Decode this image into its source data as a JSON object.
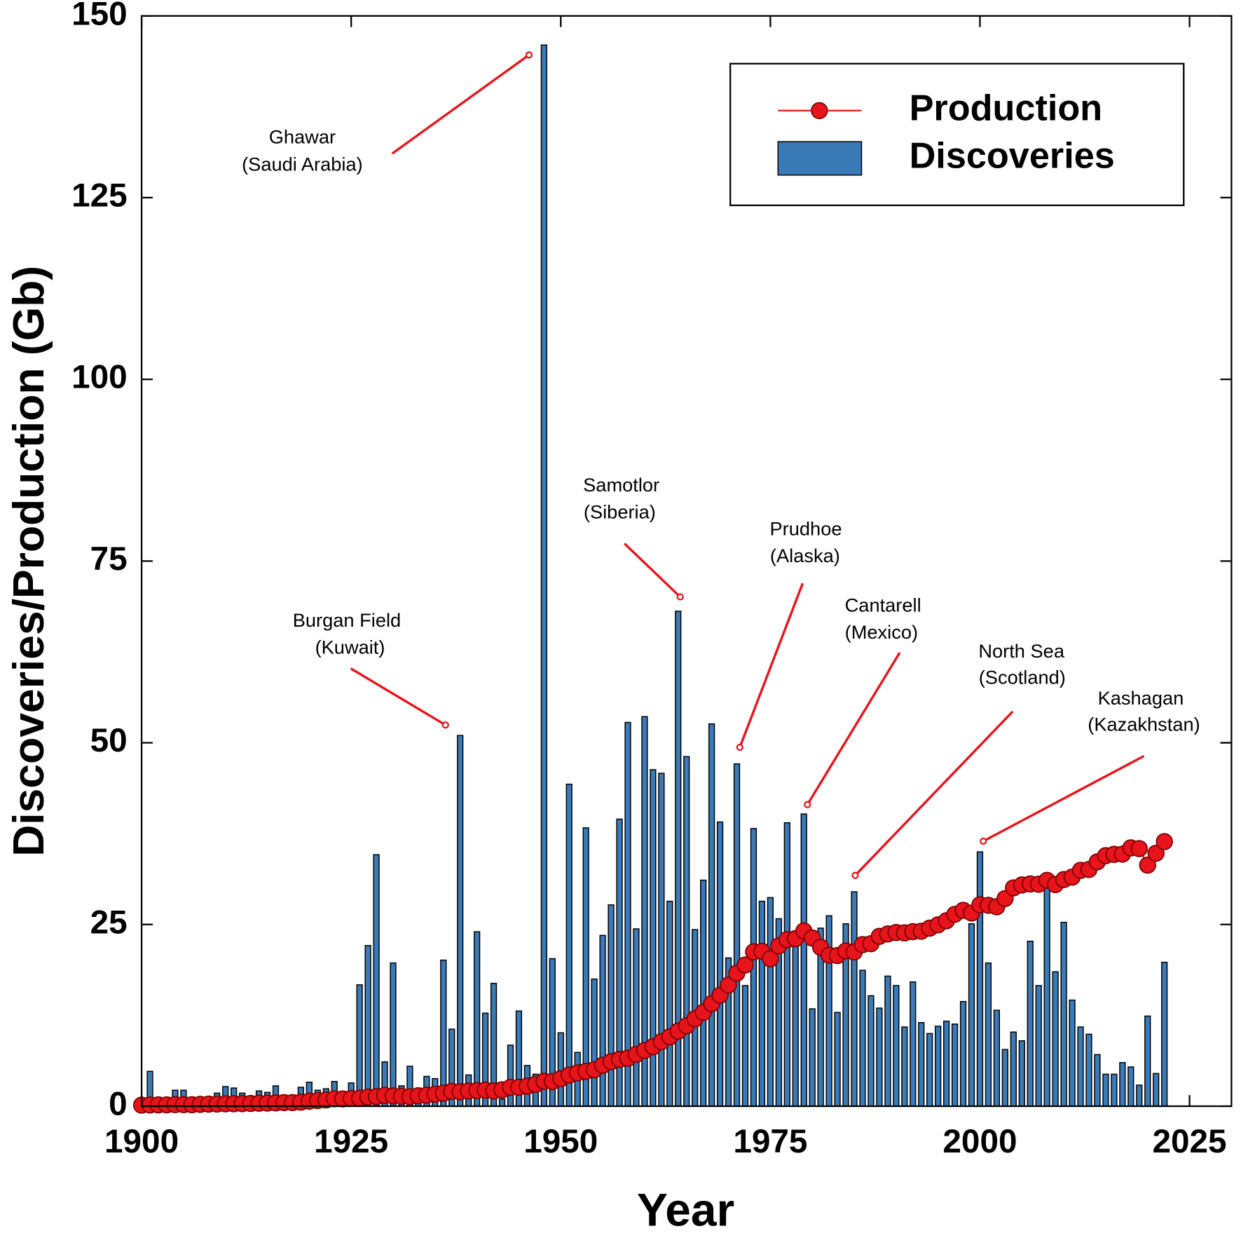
{
  "chart_data": {
    "type": "bar",
    "xlabel": "Year",
    "ylabel": "Discoveries/Production (Gb)",
    "xlim": [
      1900,
      2030
    ],
    "xticks": [
      1900,
      1925,
      1950,
      1975,
      2000,
      2025
    ],
    "ylim": [
      0,
      150
    ],
    "yticks": [
      0,
      25,
      50,
      75,
      100,
      125,
      150
    ],
    "legend": "upper right",
    "x": [
      1900,
      1901,
      1902,
      1903,
      1904,
      1905,
      1906,
      1907,
      1908,
      1909,
      1910,
      1911,
      1912,
      1913,
      1914,
      1915,
      1916,
      1917,
      1918,
      1919,
      1920,
      1921,
      1922,
      1923,
      1924,
      1925,
      1926,
      1927,
      1928,
      1929,
      1930,
      1931,
      1932,
      1933,
      1934,
      1935,
      1936,
      1937,
      1938,
      1939,
      1940,
      1941,
      1942,
      1943,
      1944,
      1945,
      1946,
      1947,
      1948,
      1949,
      1950,
      1951,
      1952,
      1953,
      1954,
      1955,
      1956,
      1957,
      1958,
      1959,
      1960,
      1961,
      1962,
      1963,
      1964,
      1965,
      1966,
      1967,
      1968,
      1969,
      1970,
      1971,
      1972,
      1973,
      1974,
      1975,
      1976,
      1977,
      1978,
      1979,
      1980,
      1981,
      1982,
      1983,
      1984,
      1985,
      1986,
      1987,
      1988,
      1989,
      1990,
      1991,
      1992,
      1993,
      1994,
      1995,
      1996,
      1997,
      1998,
      1999,
      2000,
      2001,
      2002,
      2003,
      2004,
      2005,
      2006,
      2007,
      2008,
      2009,
      2010,
      2011,
      2012,
      2013,
      2014,
      2015,
      2016,
      2017,
      2018,
      2019,
      2020,
      2021,
      2022
    ],
    "series": [
      {
        "name": "Production",
        "type": "line",
        "color": "#e8141b",
        "values": [
          0.15,
          0.17,
          0.18,
          0.19,
          0.22,
          0.22,
          0.21,
          0.26,
          0.29,
          0.3,
          0.33,
          0.34,
          0.35,
          0.38,
          0.41,
          0.43,
          0.46,
          0.5,
          0.5,
          0.56,
          0.69,
          0.77,
          0.86,
          1.02,
          1.01,
          1.07,
          1.1,
          1.26,
          1.32,
          1.49,
          1.41,
          1.37,
          1.31,
          1.44,
          1.52,
          1.65,
          1.79,
          2.04,
          1.99,
          2.09,
          2.15,
          2.22,
          2.09,
          2.26,
          2.59,
          2.6,
          2.75,
          3.02,
          3.43,
          3.4,
          3.8,
          4.28,
          4.59,
          4.8,
          5.02,
          5.63,
          6.13,
          6.44,
          6.61,
          7.13,
          7.67,
          8.19,
          8.88,
          9.54,
          10.31,
          11.06,
          12.02,
          12.91,
          14.1,
          15.27,
          16.67,
          18.3,
          19.43,
          21.23,
          21.31,
          20.29,
          22.06,
          22.91,
          23.05,
          24.11,
          23.14,
          21.86,
          20.77,
          20.73,
          21.36,
          21.22,
          22.23,
          22.36,
          23.37,
          23.7,
          23.9,
          23.85,
          24.02,
          24.07,
          24.5,
          24.95,
          25.51,
          26.4,
          26.95,
          26.58,
          27.71,
          27.64,
          27.44,
          28.57,
          30.04,
          30.44,
          30.58,
          30.54,
          31.07,
          30.49,
          31.18,
          31.52,
          32.45,
          32.57,
          33.62,
          34.47,
          34.65,
          34.68,
          35.54,
          35.44,
          33.17,
          34.8,
          36.4
        ]
      },
      {
        "name": "Discoveries",
        "type": "bar",
        "color": "#3a7ab6",
        "values": [
          0,
          4.8,
          0.3,
          0.3,
          2.2,
          2.2,
          0.5,
          0.3,
          0.5,
          1.8,
          2.7,
          2.5,
          1.8,
          1.0,
          2.1,
          1.9,
          2.8,
          1.5,
          1.0,
          2.6,
          3.3,
          2.2,
          2.4,
          3.4,
          1.5,
          3.2,
          16.7,
          22.1,
          34.6,
          6.1,
          19.7,
          2.8,
          5.5,
          2.0,
          4.1,
          3.8,
          20.1,
          10.6,
          51.0,
          4.3,
          24.0,
          12.8,
          16.9,
          1.0,
          8.4,
          13.1,
          5.6,
          4.4,
          146.0,
          20.3,
          10.1,
          44.3,
          7.4,
          38.3,
          17.5,
          23.5,
          27.7,
          39.5,
          52.8,
          24.4,
          53.6,
          46.3,
          45.8,
          28.2,
          68.1,
          48.1,
          24.3,
          31.1,
          52.6,
          39.1,
          20.4,
          47.1,
          16.6,
          38.2,
          28.2,
          28.7,
          25.8,
          39.0,
          24.0,
          40.2,
          13.4,
          24.5,
          26.2,
          12.9,
          25.1,
          29.5,
          18.7,
          15.2,
          13.5,
          17.9,
          16.6,
          10.9,
          17.1,
          11.5,
          10.0,
          11.0,
          11.7,
          11.3,
          14.4,
          25.1,
          35.0,
          19.7,
          13.2,
          7.8,
          10.2,
          9.0,
          22.7,
          16.6,
          30.0,
          18.5,
          25.3,
          14.6,
          10.9,
          9.9,
          7.1,
          4.4,
          4.4,
          6.0,
          5.4,
          2.9,
          12.4,
          4.5,
          19.8
        ]
      }
    ],
    "annotations": [
      [
        "Ghawar",
        "(Saudi Arabia)"
      ],
      [
        "Burgan Field",
        "(Kuwait)"
      ],
      [
        "Samotlor",
        "(Siberia)"
      ],
      [
        "Prudhoe",
        "(Alaska)"
      ],
      [
        "Cantarell",
        "(Mexico)"
      ],
      [
        "North Sea",
        "(Scotland)"
      ],
      [
        "Kashagan",
        "(Kazakhstan)"
      ]
    ]
  }
}
